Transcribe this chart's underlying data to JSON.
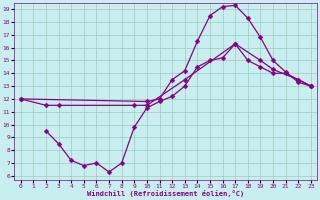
{
  "xlabel": "Windchill (Refroidissement éolien,°C)",
  "xlim": [
    -0.5,
    23.5
  ],
  "ylim": [
    5.7,
    19.5
  ],
  "xticks": [
    0,
    1,
    2,
    3,
    4,
    5,
    6,
    7,
    8,
    9,
    10,
    11,
    12,
    13,
    14,
    15,
    16,
    17,
    18,
    19,
    20,
    21,
    22,
    23
  ],
  "yticks": [
    6,
    7,
    8,
    9,
    10,
    11,
    12,
    13,
    14,
    15,
    16,
    17,
    18,
    19
  ],
  "bg_color": "#c8eef0",
  "line_color": "#880088",
  "grid_color": "#99ccbb",
  "line1_x": [
    0,
    10,
    11,
    12,
    13,
    14,
    15,
    16,
    17,
    18,
    19,
    20,
    21,
    22,
    23
  ],
  "line1_y": [
    12,
    11.8,
    12.0,
    13.5,
    14.2,
    16.5,
    18.5,
    19.2,
    19.3,
    18.3,
    16.8,
    15.0,
    14.1,
    13.3,
    13.0
  ],
  "line2_x": [
    0,
    2,
    3,
    9,
    10,
    13,
    17,
    19,
    20,
    22,
    23
  ],
  "line2_y": [
    12,
    11.5,
    11.5,
    11.5,
    11.5,
    13.5,
    16.3,
    15.0,
    14.3,
    13.5,
    13.0
  ],
  "line3_x": [
    2,
    3,
    4,
    5,
    6,
    7,
    8,
    9,
    10,
    11,
    12,
    13,
    14,
    15,
    16,
    17,
    18,
    19,
    20,
    21,
    22,
    23
  ],
  "line3_y": [
    9.5,
    8.5,
    7.2,
    6.8,
    7.0,
    6.3,
    7.0,
    9.8,
    11.3,
    11.8,
    12.2,
    13.0,
    14.5,
    15.0,
    15.2,
    16.3,
    15.0,
    14.5,
    14.0,
    14.0,
    13.5,
    13.0
  ],
  "markersize": 2.5,
  "linewidth": 0.9
}
